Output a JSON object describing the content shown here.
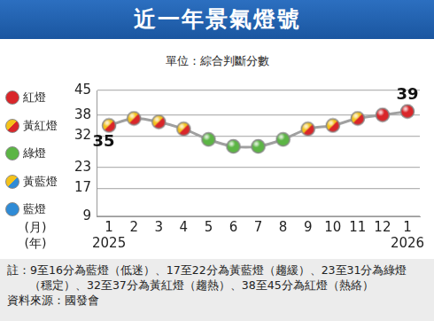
{
  "chart_data": {
    "type": "line",
    "title": "近一年景氣燈號",
    "subtitle": "單位：綜合判斷分數",
    "categories": [
      "1",
      "2",
      "3",
      "4",
      "5",
      "6",
      "7",
      "8",
      "9",
      "10",
      "11",
      "12",
      "1"
    ],
    "years": [
      "2025",
      null,
      null,
      null,
      null,
      null,
      null,
      null,
      null,
      null,
      null,
      null,
      "2026"
    ],
    "x_unit_labels": [
      "(月)",
      "(年)"
    ],
    "values": [
      35,
      37,
      36,
      34,
      31,
      29,
      29,
      31,
      34,
      35,
      37,
      38,
      39
    ],
    "value_labels": [
      "35",
      null,
      null,
      null,
      null,
      null,
      null,
      null,
      null,
      null,
      null,
      null,
      "39"
    ],
    "lights": [
      "黃紅燈",
      "黃紅燈",
      "黃紅燈",
      "黃紅燈",
      "綠燈",
      "綠燈",
      "綠燈",
      "綠燈",
      "黃紅燈",
      "黃紅燈",
      "黃紅燈",
      "紅燈",
      "紅燈"
    ],
    "color": "#a0a0a0",
    "marker": "circle",
    "data_labels": true,
    "ylim": [
      9,
      45
    ],
    "yticks": [
      9,
      17,
      23,
      32,
      38,
      45
    ],
    "grid": true,
    "legend_items": [
      {
        "name": "紅燈",
        "colors": [
          "#d9262a",
          "#d9262a"
        ]
      },
      {
        "name": "黃紅燈",
        "colors": [
          "#f4c21a",
          "#d9262a"
        ]
      },
      {
        "name": "綠燈",
        "colors": [
          "#5cb545",
          "#5cb545"
        ]
      },
      {
        "name": "黃藍燈",
        "colors": [
          "#f4c21a",
          "#2f8bd6"
        ]
      },
      {
        "name": "藍燈",
        "colors": [
          "#2f8bd6",
          "#2f8bd6"
        ]
      }
    ],
    "note": "註：9至16分為藍燈（低迷）、17至22分為黃藍燈（趨緩）、23至31分為綠燈（穩定）、32至37分為黃紅燈（趨熱）、38至45分為紅燈（熱絡）",
    "source": "資料來源：國發會"
  }
}
